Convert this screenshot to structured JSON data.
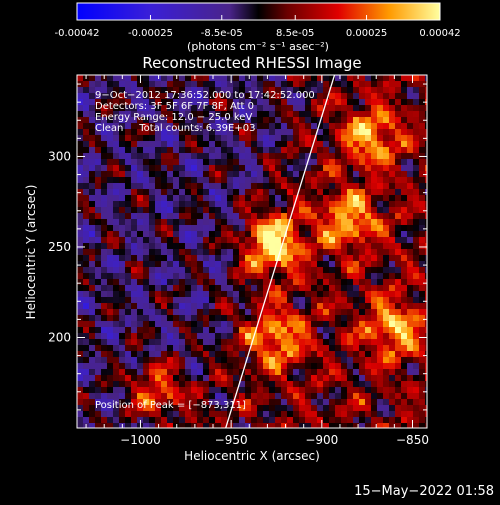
{
  "colorbar": {
    "tick_labels": [
      "-0.00042",
      "-0.00025",
      "-8.5e-05",
      "8.5e-05",
      "0.00025",
      "0.00042"
    ],
    "tick_values": [
      -0.00042,
      -0.00025,
      -8.5e-05,
      8.5e-05,
      0.00025,
      0.00042
    ],
    "units_label": "(photons cm⁻² s⁻¹ asec⁻²)",
    "range": [
      -0.00042,
      0.00042
    ]
  },
  "chart_data": {
    "type": "heatmap",
    "title": "Reconstructed RHESSI Image",
    "xlabel": "Heliocentric X (arcsec)",
    "ylabel": "Heliocentric Y (arcsec)",
    "xlim": [
      -1035,
      -842
    ],
    "ylim": [
      150,
      345
    ],
    "xticks": [
      {
        "value": -1000,
        "label": "−1000"
      },
      {
        "value": -950,
        "label": "−950"
      },
      {
        "value": -900,
        "label": "−900"
      },
      {
        "value": -850,
        "label": "−850"
      }
    ],
    "yticks": [
      {
        "value": 200,
        "label": "200"
      },
      {
        "value": 250,
        "label": "250"
      },
      {
        "value": 300,
        "label": "300"
      }
    ],
    "annotations": [
      "9−Oct−2012 17:36:52.000 to 17:42:52.000",
      "Detectors: 3F 5F 6F 7F 8F, Att 0",
      "Energy Range: 12.0 − 25.0 keV",
      "Clean     Total counts: 6.39E+03"
    ],
    "peak_text": "Position of Peak = [−873,311]",
    "peak_position": [
      -873,
      311
    ],
    "limb_line": [
      [
        -953,
        150
      ],
      [
        -893,
        345
      ]
    ],
    "bright_sources": [
      {
        "x": -927,
        "y": 252
      },
      {
        "x": -873,
        "y": 311
      },
      {
        "x": -885,
        "y": 265
      },
      {
        "x": -860,
        "y": 205
      },
      {
        "x": -990,
        "y": 170
      },
      {
        "x": -925,
        "y": 200
      }
    ]
  },
  "footer": {
    "date": "15−May−2022 01:58"
  }
}
